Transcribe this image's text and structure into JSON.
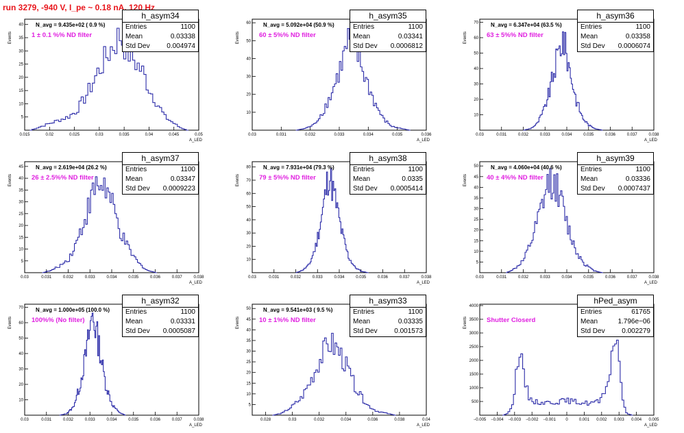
{
  "run_title": "run 3279,  -940 V, I_pe ~ 0.18 nA, 120 Hz",
  "colors": {
    "hist_line": "#2b2ba8",
    "run_title": "#e8151b",
    "filter_label": "#e020e0"
  },
  "chart_data": [
    {
      "type": "bar",
      "name": "h_asym34",
      "navg": "N_avg = 9.435e+02 ( 0.9 %)",
      "filter": "1 ± 0.1 %% ND filter",
      "stats": {
        "entries": "1100",
        "mean": "0.03338",
        "std": "0.004974"
      },
      "xlim": [
        0.015,
        0.05
      ],
      "xticks": [
        "0.015",
        "0.02",
        "0.025",
        "0.03",
        "0.035",
        "0.04",
        "0.045",
        "0.05"
      ],
      "ylim": [
        0,
        42
      ],
      "yticks": [
        "5",
        "10",
        "15",
        "20",
        "25",
        "30",
        "35",
        "40"
      ],
      "xlabel": "A_LED",
      "ylabel": "Events",
      "bins": [
        [
          0.016,
          0,
          0
        ],
        [
          0.0175,
          0.5,
          1
        ],
        [
          0.019,
          0.52,
          2
        ],
        [
          0.0205,
          0.54,
          3
        ],
        [
          0.022,
          0.56,
          4
        ],
        [
          0.0235,
          0.58,
          5
        ],
        [
          0.025,
          0.6,
          7
        ],
        [
          0.0265,
          0.62,
          11
        ],
        [
          0.028,
          0.64,
          16
        ],
        [
          0.0295,
          0.66,
          22
        ],
        [
          0.031,
          0.68,
          27
        ],
        [
          0.0325,
          0.7,
          32
        ],
        [
          0.034,
          0.72,
          36
        ],
        [
          0.0355,
          0.74,
          30
        ],
        [
          0.037,
          0.76,
          26
        ],
        [
          0.0385,
          0.78,
          22
        ],
        [
          0.04,
          0.8,
          15
        ],
        [
          0.0415,
          0.82,
          10
        ],
        [
          0.043,
          0.84,
          5
        ],
        [
          0.0445,
          0.86,
          3
        ],
        [
          0.046,
          0.88,
          1
        ],
        [
          0.0475,
          0.9,
          0
        ]
      ]
    },
    {
      "type": "bar",
      "name": "h_asym35",
      "navg": "N_avg = 5.092e+04 (50.9 %)",
      "filter": "60 ± 5%% ND filter",
      "stats": {
        "entries": "1100",
        "mean": "0.03341",
        "std": "0.0006812"
      },
      "xlim": [
        0.03,
        0.036
      ],
      "xticks": [
        "0.03",
        "0.031",
        "0.032",
        "0.033",
        "0.034",
        "0.035",
        "0.036"
      ],
      "ylim": [
        0,
        62
      ],
      "yticks": [
        "10",
        "20",
        "30",
        "40",
        "50",
        "60"
      ],
      "xlabel": "A_LED",
      "ylabel": "Events",
      "bins": [
        [
          0.0315,
          0,
          0
        ],
        [
          0.0318,
          0.5,
          1
        ],
        [
          0.0321,
          0.52,
          3
        ],
        [
          0.0324,
          0.54,
          10
        ],
        [
          0.0327,
          0.56,
          20
        ],
        [
          0.033,
          0.58,
          34
        ],
        [
          0.0333,
          0.6,
          50
        ],
        [
          0.0336,
          0.62,
          42
        ],
        [
          0.0339,
          0.64,
          28
        ],
        [
          0.0342,
          0.66,
          15
        ],
        [
          0.0345,
          0.68,
          6
        ],
        [
          0.0348,
          0.7,
          2
        ],
        [
          0.0351,
          0.72,
          1
        ],
        [
          0.0354,
          0.74,
          0
        ]
      ]
    },
    {
      "type": "bar",
      "name": "h_asym36",
      "navg": "N_avg = 6.347e+04 (63.5 %)",
      "filter": "63 ± 5%% ND filter",
      "stats": {
        "entries": "1100",
        "mean": "0.03358",
        "std": "0.0006074"
      },
      "xlim": [
        0.03,
        0.038
      ],
      "xticks": [
        "0.03",
        "0.031",
        "0.032",
        "0.033",
        "0.034",
        "0.035",
        "0.036",
        "0.037",
        "0.038"
      ],
      "ylim": [
        0,
        72
      ],
      "yticks": [
        "10",
        "20",
        "30",
        "40",
        "50",
        "60",
        "70"
      ],
      "xlabel": "A_LED",
      "ylabel": "Events",
      "bins": [
        [
          0.032,
          0,
          0
        ],
        [
          0.0323,
          0.5,
          1
        ],
        [
          0.0326,
          0.52,
          4
        ],
        [
          0.0329,
          0.54,
          12
        ],
        [
          0.0332,
          0.56,
          26
        ],
        [
          0.0335,
          0.58,
          45
        ],
        [
          0.0338,
          0.6,
          60
        ],
        [
          0.0341,
          0.62,
          40
        ],
        [
          0.0344,
          0.64,
          20
        ],
        [
          0.0347,
          0.66,
          8
        ],
        [
          0.035,
          0.68,
          3
        ],
        [
          0.0353,
          0.7,
          1
        ],
        [
          0.0356,
          0.72,
          0
        ]
      ]
    },
    {
      "type": "bar",
      "name": "h_asym37",
      "navg": "N_avg = 2.619e+04 (26.2 %)",
      "filter": "26 ± 2.5%% ND filter",
      "stats": {
        "entries": "1100",
        "mean": "0.03347",
        "std": "0.0009223"
      },
      "xlim": [
        0.03,
        0.038
      ],
      "xticks": [
        "0.03",
        "0.031",
        "0.032",
        "0.033",
        "0.034",
        "0.035",
        "0.036",
        "0.037",
        "0.038"
      ],
      "ylim": [
        0,
        47
      ],
      "yticks": [
        "5",
        "10",
        "15",
        "20",
        "25",
        "30",
        "35",
        "40",
        "45"
      ],
      "xlabel": "A_LED",
      "ylabel": "Events",
      "bins": [
        [
          0.0308,
          0,
          0
        ],
        [
          0.0312,
          0.5,
          1
        ],
        [
          0.0316,
          0.52,
          3
        ],
        [
          0.032,
          0.54,
          6
        ],
        [
          0.0324,
          0.56,
          14
        ],
        [
          0.0328,
          0.58,
          25
        ],
        [
          0.0332,
          0.6,
          36
        ],
        [
          0.0336,
          0.62,
          38
        ],
        [
          0.034,
          0.64,
          28
        ],
        [
          0.0344,
          0.66,
          16
        ],
        [
          0.0348,
          0.68,
          9
        ],
        [
          0.0352,
          0.7,
          4
        ],
        [
          0.0356,
          0.72,
          1
        ],
        [
          0.036,
          0.74,
          0
        ]
      ]
    },
    {
      "type": "bar",
      "name": "h_asym38",
      "navg": "N_avg = 7.931e+04 (79.3 %)",
      "filter": "79 ± 5%% ND filter",
      "stats": {
        "entries": "1100",
        "mean": "0.0335",
        "std": "0.0005414"
      },
      "xlim": [
        0.03,
        0.038
      ],
      "xticks": [
        "0.03",
        "0.031",
        "0.032",
        "0.033",
        "0.034",
        "0.035",
        "0.036",
        "0.037",
        "0.038"
      ],
      "ylim": [
        0,
        84
      ],
      "yticks": [
        "10",
        "20",
        "30",
        "40",
        "50",
        "60",
        "70",
        "80"
      ],
      "xlabel": "A_LED",
      "ylabel": "Events",
      "bins": [
        [
          0.032,
          0,
          0
        ],
        [
          0.0323,
          0.5,
          2
        ],
        [
          0.0326,
          0.52,
          6
        ],
        [
          0.0329,
          0.54,
          20
        ],
        [
          0.0332,
          0.56,
          45
        ],
        [
          0.0335,
          0.58,
          76
        ],
        [
          0.0338,
          0.6,
          55
        ],
        [
          0.0341,
          0.62,
          30
        ],
        [
          0.0344,
          0.64,
          12
        ],
        [
          0.0347,
          0.66,
          4
        ],
        [
          0.035,
          0.68,
          1
        ],
        [
          0.0353,
          0.7,
          0
        ]
      ]
    },
    {
      "type": "bar",
      "name": "h_asym39",
      "navg": "N_avg = 4.060e+04 (40.6 %)",
      "filter": "40 ± 4%% ND filter",
      "stats": {
        "entries": "1100",
        "mean": "0.03336",
        "std": "0.0007437"
      },
      "xlim": [
        0.03,
        0.038
      ],
      "xticks": [
        "0.03",
        "0.031",
        "0.032",
        "0.033",
        "0.034",
        "0.035",
        "0.036",
        "0.037",
        "0.038"
      ],
      "ylim": [
        0,
        52
      ],
      "yticks": [
        "5",
        "10",
        "15",
        "20",
        "25",
        "30",
        "35",
        "40",
        "45",
        "50"
      ],
      "xlabel": "A_LED",
      "ylabel": "Events",
      "bins": [
        [
          0.0312,
          0,
          0
        ],
        [
          0.0316,
          0.5,
          2
        ],
        [
          0.032,
          0.52,
          6
        ],
        [
          0.0324,
          0.54,
          16
        ],
        [
          0.0328,
          0.56,
          30
        ],
        [
          0.0332,
          0.58,
          44
        ],
        [
          0.0336,
          0.6,
          38
        ],
        [
          0.034,
          0.62,
          22
        ],
        [
          0.0344,
          0.64,
          10
        ],
        [
          0.0348,
          0.66,
          4
        ],
        [
          0.0352,
          0.68,
          1
        ],
        [
          0.0356,
          0.7,
          0
        ]
      ]
    },
    {
      "type": "bar",
      "name": "h_asym32",
      "navg": "N_avg = 1.000e+05 (100.0 %)",
      "filter": "100%% (No filter)",
      "stats": {
        "entries": "1100",
        "mean": "0.03331",
        "std": "0.0005087"
      },
      "xlim": [
        0.03,
        0.038
      ],
      "xticks": [
        "0.03",
        "0.031",
        "0.032",
        "0.033",
        "0.034",
        "0.035",
        "0.036",
        "0.037",
        "0.038"
      ],
      "ylim": [
        0,
        72
      ],
      "yticks": [
        "10",
        "20",
        "30",
        "40",
        "50",
        "60",
        "70"
      ],
      "xlabel": "A_LED",
      "ylabel": "Events",
      "bins": [
        [
          0.0316,
          0,
          0
        ],
        [
          0.0319,
          0.5,
          1
        ],
        [
          0.0322,
          0.52,
          5
        ],
        [
          0.0325,
          0.54,
          18
        ],
        [
          0.0328,
          0.56,
          40
        ],
        [
          0.0331,
          0.58,
          66
        ],
        [
          0.0334,
          0.6,
          45
        ],
        [
          0.0337,
          0.62,
          20
        ],
        [
          0.034,
          0.64,
          7
        ],
        [
          0.0343,
          0.66,
          2
        ],
        [
          0.0346,
          0.68,
          0
        ]
      ]
    },
    {
      "type": "bar",
      "name": "h_asym33",
      "navg": "N_avg = 9.541e+03 ( 9.5 %)",
      "filter": "10 ± 1%% ND filter",
      "stats": {
        "entries": "1100",
        "mean": "0.03335",
        "std": "0.001573"
      },
      "xlim": [
        0.027,
        0.04
      ],
      "xticks": [
        "0.028",
        "0.03",
        "0.032",
        "0.034",
        "0.036",
        "0.038",
        "0.04"
      ],
      "ylim": [
        0,
        52
      ],
      "yticks": [
        "5",
        "10",
        "15",
        "20",
        "25",
        "30",
        "35",
        "40",
        "45",
        "50"
      ],
      "xlabel": "A_LED",
      "ylabel": "Events",
      "bins": [
        [
          0.0285,
          0,
          0
        ],
        [
          0.0292,
          0.5,
          1
        ],
        [
          0.0299,
          0.52,
          4
        ],
        [
          0.0306,
          0.54,
          8
        ],
        [
          0.0313,
          0.56,
          16
        ],
        [
          0.032,
          0.58,
          26
        ],
        [
          0.0327,
          0.6,
          34
        ],
        [
          0.0334,
          0.62,
          30
        ],
        [
          0.0341,
          0.64,
          21
        ],
        [
          0.0348,
          0.66,
          11
        ],
        [
          0.0355,
          0.68,
          5
        ],
        [
          0.0362,
          0.7,
          2
        ],
        [
          0.0369,
          0.72,
          1
        ],
        [
          0.0376,
          0.74,
          0
        ]
      ]
    },
    {
      "type": "bar",
      "name": "hPed_asym",
      "navg": "",
      "filter": "Shutter Closerd",
      "stats": {
        "entries": "61765",
        "mean": "1.796e−06",
        "std": "0.002279"
      },
      "xlim": [
        -0.005,
        0.005
      ],
      "xticks": [
        "−0.005",
        "−0.004",
        "−0.003",
        "−0.002",
        "−0.001",
        "0",
        "0.001",
        "0.002",
        "0.003",
        "0.004",
        "0.005"
      ],
      "ylim": [
        0,
        4050
      ],
      "yticks": [
        "500",
        "1000",
        "1500",
        "2000",
        "2500",
        "3000",
        "3500",
        "4000"
      ],
      "xlabel": "A_LED",
      "ylabel": "Events",
      "bins": [
        [
          -0.0037,
          0,
          0
        ],
        [
          -0.0034,
          0.5,
          80
        ],
        [
          -0.0031,
          0.52,
          600
        ],
        [
          -0.0028,
          0.54,
          2550
        ],
        [
          -0.0025,
          0.56,
          1300
        ],
        [
          -0.0022,
          0.58,
          620
        ],
        [
          -0.0018,
          0.6,
          480
        ],
        [
          -0.0012,
          0.62,
          460
        ],
        [
          -0.0006,
          0.64,
          500
        ],
        [
          0.0,
          0.66,
          530
        ],
        [
          0.0006,
          0.68,
          470
        ],
        [
          0.0012,
          0.7,
          440
        ],
        [
          0.0018,
          0.72,
          500
        ],
        [
          0.0022,
          0.74,
          800
        ],
        [
          0.0025,
          0.76,
          2000
        ],
        [
          0.0028,
          0.78,
          3300
        ],
        [
          0.0031,
          0.8,
          700
        ],
        [
          0.0034,
          0.82,
          60
        ],
        [
          0.0037,
          0.84,
          0
        ]
      ]
    }
  ]
}
